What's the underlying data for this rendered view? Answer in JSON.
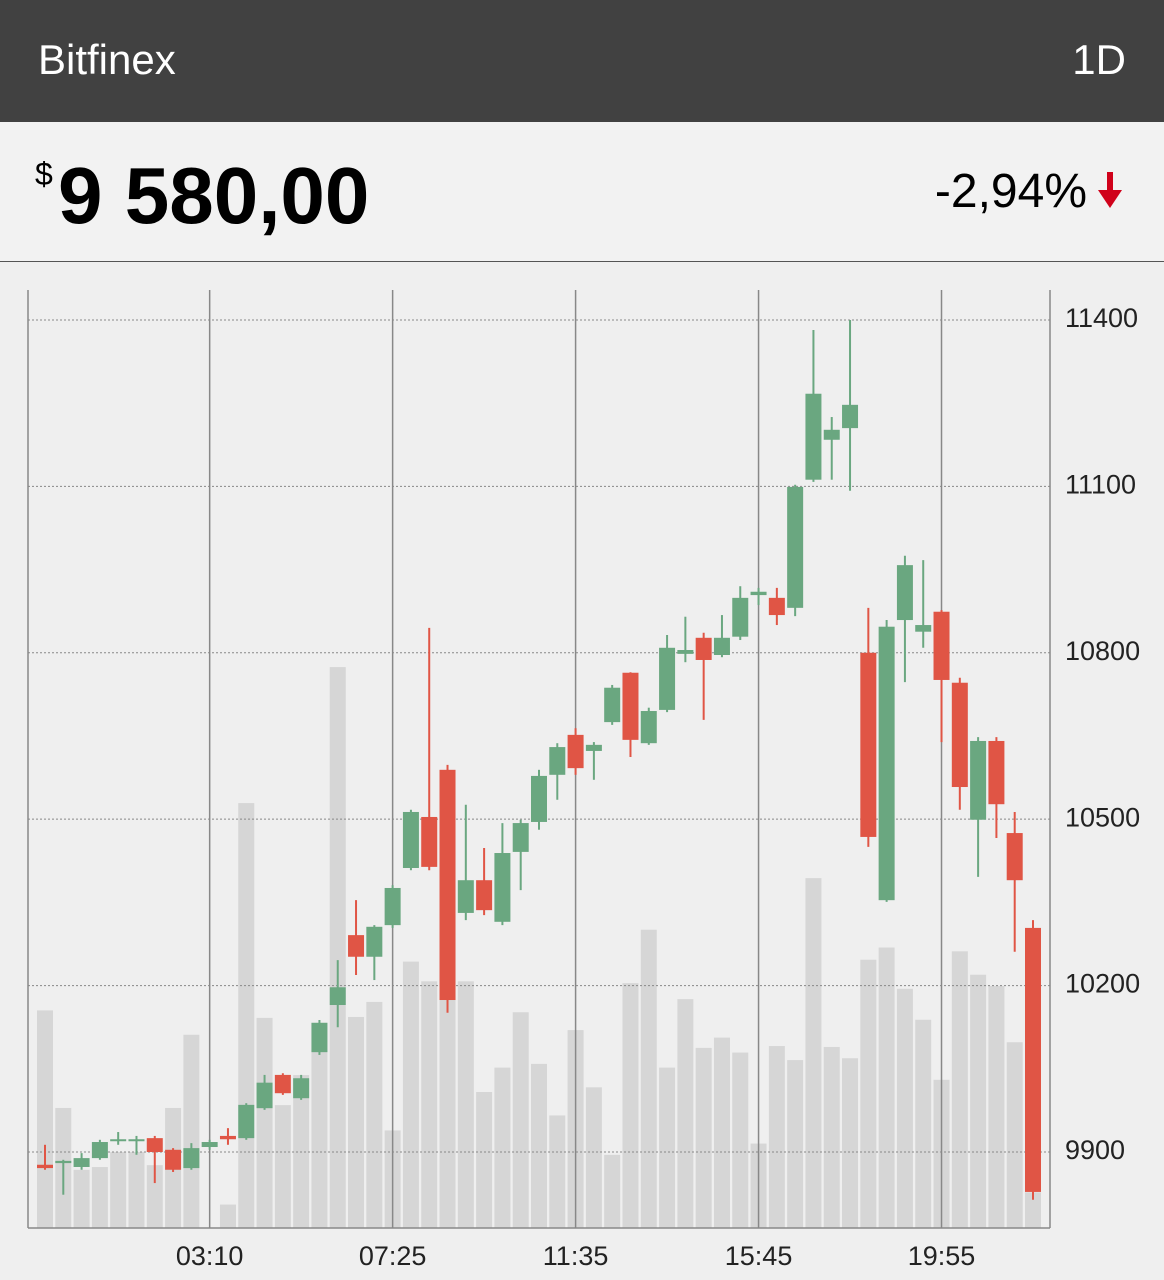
{
  "header": {
    "title": "Bitfinex",
    "interval": "1D"
  },
  "price": {
    "currency": "$",
    "value": "9 580,00",
    "change": "-2,94%"
  },
  "chart_data": {
    "type": "candlestick",
    "categories": [
      null,
      null,
      null,
      null,
      null,
      null,
      null,
      null,
      null,
      "03:10",
      null,
      null,
      null,
      null,
      null,
      null,
      null,
      null,
      null,
      "07:25",
      null,
      null,
      null,
      null,
      null,
      null,
      null,
      null,
      null,
      "11:35",
      null,
      null,
      null,
      null,
      null,
      null,
      null,
      null,
      null,
      "15:45",
      null,
      null,
      null,
      null,
      null,
      null,
      null,
      null,
      null,
      "19:55",
      null,
      null,
      null,
      null,
      null
    ],
    "open": [
      9877,
      9880,
      9873,
      9889,
      9920,
      9920,
      9925,
      9904,
      9871,
      9909,
      9929,
      9925,
      9979,
      10039,
      9997,
      10080,
      10165,
      10291,
      10252,
      10309,
      10412,
      10504,
      10589,
      10331,
      10390,
      10315,
      10441,
      10495,
      10580,
      10652,
      10623,
      10675,
      10764,
      10637,
      10697,
      10798,
      10827,
      10796,
      10829,
      10904,
      10899,
      10881,
      11112,
      11184,
      11205,
      10800,
      10354,
      10859,
      10838,
      10874,
      10746,
      10499,
      10641,
      10475,
      10304
    ],
    "high": [
      9913,
      9886,
      9898,
      9922,
      9936,
      9929,
      9929,
      9907,
      9916,
      9922,
      9943,
      9988,
      10039,
      10042,
      10039,
      10138,
      10246,
      10354,
      10309,
      10381,
      10517,
      10845,
      10598,
      10526,
      10448,
      10493,
      10499,
      10589,
      10637,
      10664,
      10639,
      10742,
      10765,
      10701,
      10832,
      10865,
      10836,
      10868,
      10920,
      10917,
      10917,
      11103,
      11382,
      11225,
      11400,
      10881,
      10859,
      10975,
      10967,
      10877,
      10755,
      10648,
      10648,
      10513,
      10318
    ],
    "low": [
      9868,
      9823,
      9868,
      9886,
      9913,
      9895,
      9844,
      9864,
      9868,
      9904,
      9913,
      9922,
      9976,
      10003,
      9994,
      10075,
      10125,
      10219,
      10210,
      10304,
      10408,
      10408,
      10151,
      10318,
      10327,
      10309,
      10372,
      10481,
      10535,
      10580,
      10571,
      10670,
      10612,
      10634,
      10693,
      10783,
      10679,
      10792,
      10823,
      10886,
      10850,
      10866,
      11108,
      11112,
      11092,
      10450,
      10351,
      10747,
      10809,
      10639,
      10517,
      10396,
      10466,
      10261,
      9814
    ],
    "close": [
      9871,
      9884,
      9889,
      9918,
      9923,
      9923,
      9900,
      9868,
      9907,
      9918,
      9923,
      9985,
      10025,
      10006,
      10033,
      10133,
      10197,
      10252,
      10306,
      10376,
      10513,
      10414,
      10174,
      10390,
      10336,
      10439,
      10493,
      10578,
      10630,
      10592,
      10634,
      10737,
      10643,
      10695,
      10809,
      10805,
      10787,
      10827,
      10899,
      10910,
      10868,
      11099,
      11267,
      11202,
      11247,
      10468,
      10847,
      10958,
      10850,
      10751,
      10558,
      10641,
      10527,
      10390,
      9828
    ],
    "volume": [
      23.2,
      12.8,
      6.2,
      6.5,
      8.1,
      8.1,
      6.7,
      12.8,
      20.6,
      0,
      2.5,
      45.3,
      22.4,
      13.1,
      16.3,
      19.0,
      59.8,
      22.5,
      24.1,
      10.4,
      28.4,
      26.3,
      24.8,
      26.3,
      14.5,
      17.1,
      23.0,
      17.5,
      12.0,
      21.1,
      15.0,
      7.8,
      26.1,
      31.8,
      17.1,
      24.4,
      19.2,
      20.3,
      18.7,
      9.0,
      19.4,
      17.9,
      37.3,
      19.3,
      18.1,
      28.6,
      29.9,
      25.5,
      22.2,
      15.8,
      29.5,
      27.0,
      25.8,
      19.8,
      3.8
    ],
    "volume_lim": [
      0,
      100
    ],
    "up_color": "#6aa780",
    "down_color": "#e05545",
    "volume_color": "#d6d6d6",
    "ylim": [
      9763,
      11454
    ],
    "yticks": [
      9900,
      10200,
      10500,
      10800,
      11100,
      11400
    ],
    "grid": true
  }
}
